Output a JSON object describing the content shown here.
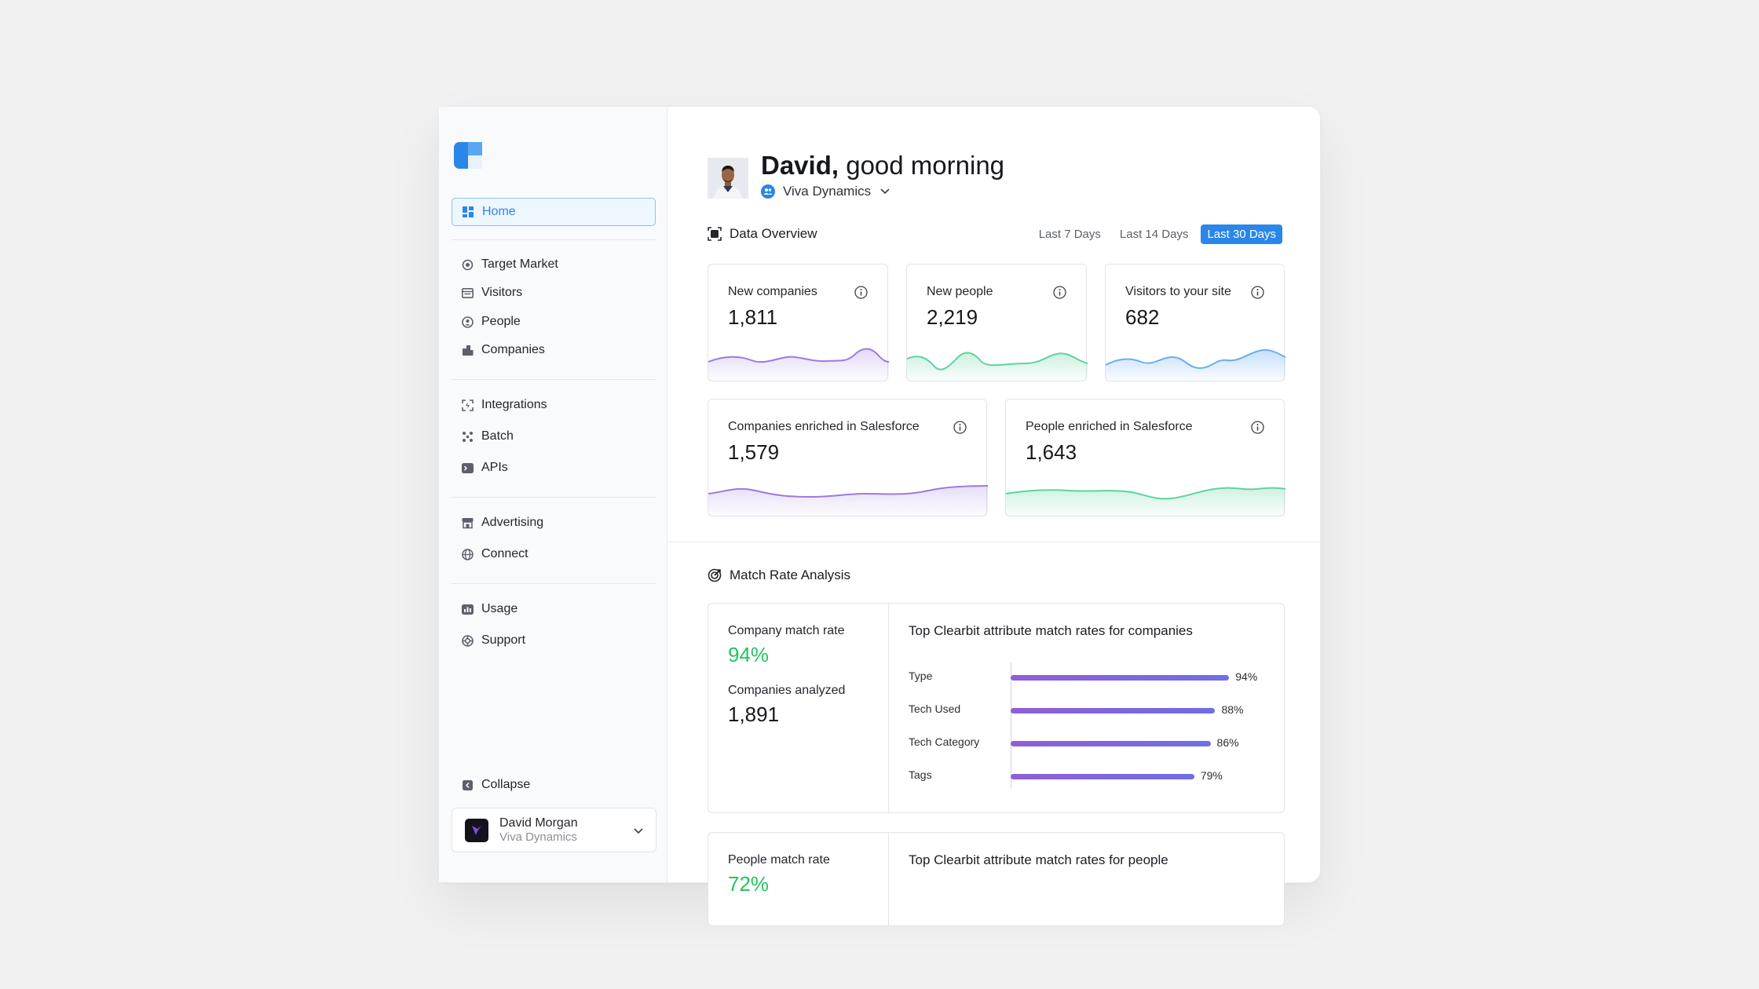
{
  "sidebar": {
    "home": "Home",
    "groups": [
      [
        "Target Market",
        "Visitors",
        "People",
        "Companies"
      ],
      [
        "Integrations",
        "Batch",
        "APIs"
      ],
      [
        "Advertising",
        "Connect"
      ],
      [
        "Usage",
        "Support"
      ]
    ],
    "collapse": "Collapse",
    "user": {
      "name": "David Morgan",
      "org": "Viva Dynamics"
    }
  },
  "header": {
    "name": "David,",
    "greeting": "good morning",
    "org": "Viva Dynamics"
  },
  "overview": {
    "title": "Data Overview",
    "ranges": [
      "Last 7 Days",
      "Last 14 Days",
      "Last 30 Days"
    ],
    "active_range": "Last 30 Days",
    "cards": [
      {
        "label": "New companies",
        "value": "1,811",
        "color": "#9b7be0"
      },
      {
        "label": "New people",
        "value": "2,219",
        "color": "#5fd3a0"
      },
      {
        "label": "Visitors to your site",
        "value": "682",
        "color": "#6aaef0"
      },
      {
        "label": "Companies enriched in Salesforce",
        "value": "1,579",
        "color": "#9b7be0"
      },
      {
        "label": "People enriched in Salesforce",
        "value": "1,643",
        "color": "#5fd3a0"
      }
    ]
  },
  "match": {
    "title": "Match Rate Analysis",
    "company": {
      "rate_label": "Company match rate",
      "rate": "94%",
      "analyzed_label": "Companies analyzed",
      "analyzed": "1,891",
      "chart_title": "Top Clearbit attribute match rates for companies"
    },
    "people": {
      "rate_label": "People match rate",
      "rate": "72%",
      "chart_title": "Top Clearbit attribute match rates for people"
    }
  },
  "chart_data": {
    "type": "bar",
    "title": "Top Clearbit attribute match rates for companies",
    "categories": [
      "Type",
      "Tech Used",
      "Tech Category",
      "Tags"
    ],
    "values": [
      94,
      88,
      86,
      79
    ],
    "value_labels": [
      "94%",
      "88%",
      "86%",
      "79%"
    ],
    "xlim": [
      0,
      100
    ],
    "orientation": "horizontal",
    "grid": false
  },
  "colors": {
    "accent": "#2a86e8",
    "success": "#22c55e",
    "bar": "#8f5ed8"
  }
}
